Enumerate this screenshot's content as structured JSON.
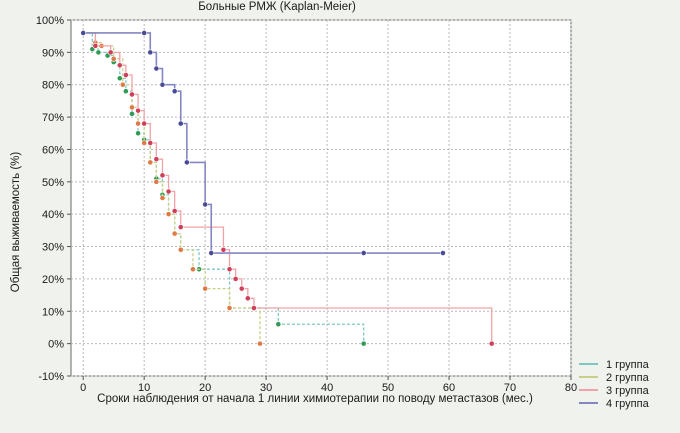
{
  "chart_data": {
    "type": "line",
    "title": "Больные РМЖ (Kaplan-Meier)",
    "xlabel": "Сроки наблюдения от начала 1 линии химиотерапии по поводу метастазов (мес.)",
    "ylabel": "Общая выживаемость (%)",
    "xlim": [
      -2,
      80
    ],
    "ylim": [
      -10,
      100
    ],
    "x_ticks": [
      0,
      10,
      20,
      30,
      40,
      50,
      60,
      70,
      80
    ],
    "y_ticks": [
      -10,
      0,
      10,
      20,
      30,
      40,
      50,
      60,
      70,
      80,
      90,
      100
    ],
    "y_tick_labels": [
      "-10%",
      "0%",
      "10%",
      "20%",
      "30%",
      "40%",
      "50%",
      "60%",
      "70%",
      "80%",
      "90%",
      "100%"
    ],
    "grid": true,
    "legend_position": "bottom-right",
    "series": [
      {
        "name": "1 группа",
        "color": "#7fc7c1",
        "marker_color": "#2f9b55",
        "x": [
          0,
          1.5,
          2.5,
          4,
          5,
          6,
          7,
          8,
          9,
          10,
          11,
          12,
          13,
          14,
          15,
          16,
          19,
          24,
          32,
          46
        ],
        "y": [
          96,
          91,
          90,
          89,
          87,
          82,
          78,
          71,
          65,
          63,
          56,
          51,
          46,
          40,
          34,
          29,
          23,
          11,
          6,
          0
        ]
      },
      {
        "name": "2 группа",
        "color": "#c8cf86",
        "marker_color": "#e07a45",
        "x": [
          0,
          2,
          3,
          5,
          6.5,
          8,
          9,
          10,
          11,
          12,
          13,
          14,
          15,
          16,
          18,
          20,
          24,
          29
        ],
        "y": [
          96,
          93,
          92,
          88,
          80,
          73,
          68,
          62,
          56,
          50,
          45,
          40,
          34,
          29,
          23,
          17,
          11,
          0
        ]
      },
      {
        "name": "3 группа",
        "color": "#f0a3a6",
        "marker_color": "#cf3f59",
        "x": [
          0,
          2,
          4.5,
          6,
          7,
          8,
          9,
          10,
          11,
          12,
          13,
          14,
          15,
          16,
          23,
          24,
          25,
          26,
          27,
          28,
          67
        ],
        "y": [
          96,
          92,
          90,
          86,
          83,
          77,
          72,
          68,
          62,
          57,
          52,
          47,
          41,
          36,
          29,
          23,
          20,
          17,
          14,
          11,
          0
        ]
      },
      {
        "name": "4 группа",
        "color": "#8486c3",
        "marker_color": "#4a4b97",
        "x": [
          0,
          10,
          11,
          12,
          13,
          15,
          16,
          17,
          20,
          21,
          46,
          59
        ],
        "y": [
          96,
          96,
          90,
          85,
          80,
          78,
          68,
          56,
          43,
          28,
          28,
          28
        ]
      }
    ]
  }
}
